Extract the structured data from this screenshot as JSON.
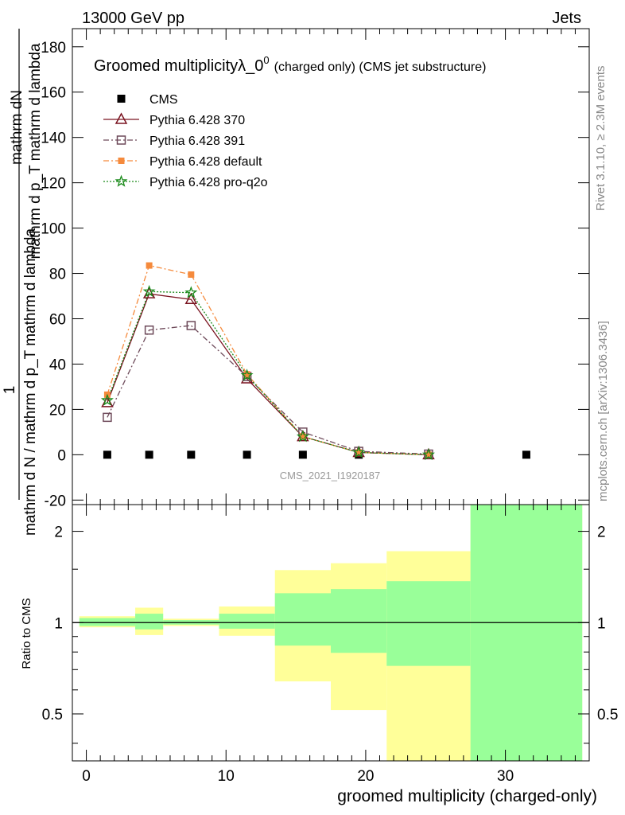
{
  "header": {
    "energy_label": "13000 GeV pp",
    "category_label": "Jets"
  },
  "side_text": {
    "rivet": "Rivet 3.1.10, ≥ 2.3M events",
    "source": "mcplots.cern.ch [arXiv:1306.3436]"
  },
  "chart_data": [
    {
      "type": "line",
      "title": "Groomed multiplicityλ_0",
      "title_superscript": "0",
      "subtitle": "(charged only) (CMS jet substructure)",
      "analysis_id": "CMS_2021_I1920187",
      "xlabel": "groomed multiplicity (charged-only)",
      "ylabel": {
        "numerator": "mathrm dN",
        "numerator_lower": "mathrm d p_T mathrm d lambda",
        "prefix": "1",
        "denominator": "mathrm d N / mathrm d p_T mathrm d lambda"
      },
      "xlim": [
        -1,
        36
      ],
      "ylim": [
        -22,
        188
      ],
      "x_ticks": [
        0,
        10,
        20,
        30
      ],
      "y_ticks": [
        -20,
        0,
        20,
        40,
        60,
        80,
        100,
        120,
        140,
        160,
        180
      ],
      "legend_position": "top-left",
      "series": [
        {
          "name": "CMS",
          "color": "#000000",
          "marker": "square",
          "x": [
            1.5,
            4.5,
            7.5,
            11.5,
            15.5,
            19.5,
            31.5
          ],
          "y": [
            0,
            0,
            0,
            0,
            0,
            0,
            0
          ]
        },
        {
          "name": "Pythia 6.428 370",
          "color": "#7a1420",
          "marker": "triangle-open",
          "dash": "solid",
          "x": [
            1.5,
            4.5,
            7.5,
            11.5,
            15.5,
            19.5,
            24.5
          ],
          "y": [
            23,
            71,
            68.5,
            33.5,
            8,
            1,
            0
          ]
        },
        {
          "name": "Pythia 6.428 391",
          "color": "#6e4a5a",
          "marker": "square-open",
          "dash": "dashdot",
          "x": [
            1.5,
            4.5,
            7.5,
            11.5,
            15.5,
            19.5,
            24.5
          ],
          "y": [
            16.5,
            55,
            57,
            34.5,
            10,
            1.5,
            0.3
          ]
        },
        {
          "name": "Pythia 6.428 default",
          "color": "#f58a3c",
          "marker": "square-filled",
          "dash": "dashdot",
          "x": [
            1.5,
            4.5,
            7.5,
            11.5,
            15.5,
            19.5,
            24.5
          ],
          "y": [
            26.5,
            83.5,
            79.5,
            35.5,
            8,
            1,
            0
          ]
        },
        {
          "name": "Pythia 6.428 pro-q2o",
          "color": "#1a8a1a",
          "marker": "star",
          "dash": "dotted",
          "x": [
            1.5,
            4.5,
            7.5,
            11.5,
            15.5,
            19.5,
            24.5
          ],
          "y": [
            24,
            72,
            71.5,
            35,
            8,
            1,
            0
          ]
        }
      ]
    },
    {
      "type": "area",
      "ylabel": "Ratio to CMS",
      "xlim": [
        -1,
        36
      ],
      "scale": "log",
      "ylim": [
        0.35,
        2.45
      ],
      "y_ticks": [
        0.5,
        1,
        2
      ],
      "bands": [
        {
          "x0": -0.5,
          "x1": 3.5,
          "yellow": [
            0.965,
            1.05
          ],
          "green": [
            0.975,
            1.035
          ]
        },
        {
          "x0": 3.5,
          "x1": 5.5,
          "yellow": [
            0.91,
            1.12
          ],
          "green": [
            0.95,
            1.07
          ]
        },
        {
          "x0": 5.5,
          "x1": 9.5,
          "yellow": [
            0.975,
            1.03
          ],
          "green": [
            0.985,
            1.02
          ]
        },
        {
          "x0": 9.5,
          "x1": 13.5,
          "yellow": [
            0.905,
            1.13
          ],
          "green": [
            0.955,
            1.07
          ]
        },
        {
          "x0": 13.5,
          "x1": 17.5,
          "yellow": [
            0.64,
            1.49
          ],
          "green": [
            0.84,
            1.25
          ]
        },
        {
          "x0": 17.5,
          "x1": 21.5,
          "yellow": [
            0.515,
            1.57
          ],
          "green": [
            0.795,
            1.29
          ]
        },
        {
          "x0": 21.5,
          "x1": 27.5,
          "yellow": [
            0.35,
            1.72
          ],
          "green": [
            0.72,
            1.37
          ]
        },
        {
          "x0": 27.5,
          "x1": 35.5,
          "yellow": [
            0.35,
            2.45
          ],
          "green": [
            0.35,
            2.45
          ]
        }
      ],
      "colors": {
        "yellow": "#ffff99",
        "green": "#99ff99",
        "reference_line": "#000000"
      }
    }
  ]
}
